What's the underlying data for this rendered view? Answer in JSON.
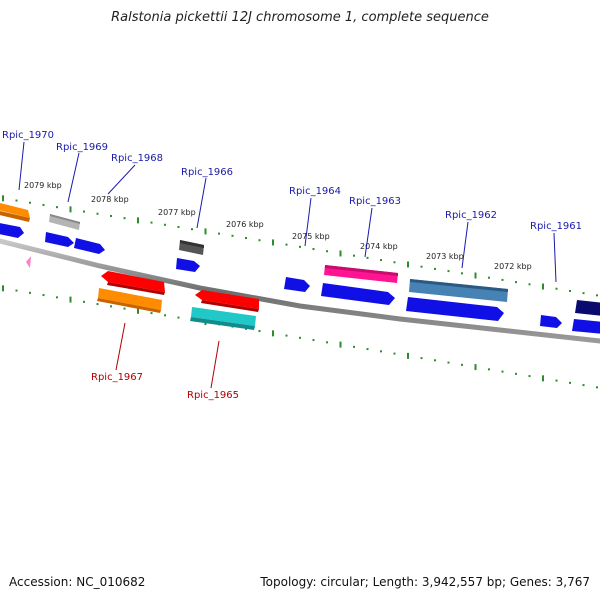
{
  "title": "Ralstonia pickettii 12J chromosome 1, complete sequence",
  "footer": {
    "accession": "Accession: NC_010682",
    "topology": "Topology: circular; Length: 3,942,557 bp; Genes: 3,767"
  },
  "colors": {
    "backbone": "#7a7a7a",
    "tick": "#2e8b2e",
    "label_top": "#1a1aaa",
    "label_bottom": "#b00000",
    "cds": "#1010e6"
  },
  "ticks": [
    {
      "label": "2079 kbp"
    },
    {
      "label": "2078 kbp"
    },
    {
      "label": "2077 kbp"
    },
    {
      "label": "2076 kbp"
    },
    {
      "label": "2075 kbp"
    },
    {
      "label": "2074 kbp"
    },
    {
      "label": "2073 kbp"
    },
    {
      "label": "2072 kbp"
    }
  ],
  "genes": [
    {
      "label": "Rpic_1970",
      "color": "#ff8c00",
      "strand": "top"
    },
    {
      "label": "Rpic_1969",
      "color": "#b4b4b4",
      "strand": "top"
    },
    {
      "label": "Rpic_1968",
      "color": "",
      "strand": "top"
    },
    {
      "label": "Rpic_1967",
      "color": "#ff8c00",
      "strand": "bottom"
    },
    {
      "label": "Rpic_1966",
      "color": "#555555",
      "strand": "top"
    },
    {
      "label": "Rpic_1965",
      "color": "#20c8c8",
      "strand": "bottom"
    },
    {
      "label": "Rpic_1964",
      "color": "",
      "strand": "top"
    },
    {
      "label": "Rpic_1963",
      "color": "#ff1493",
      "strand": "top"
    },
    {
      "label": "Rpic_1962",
      "color": "#4682b4",
      "strand": "top"
    },
    {
      "label": "Rpic_1961",
      "color": "#0a0a6e",
      "strand": "top"
    }
  ]
}
